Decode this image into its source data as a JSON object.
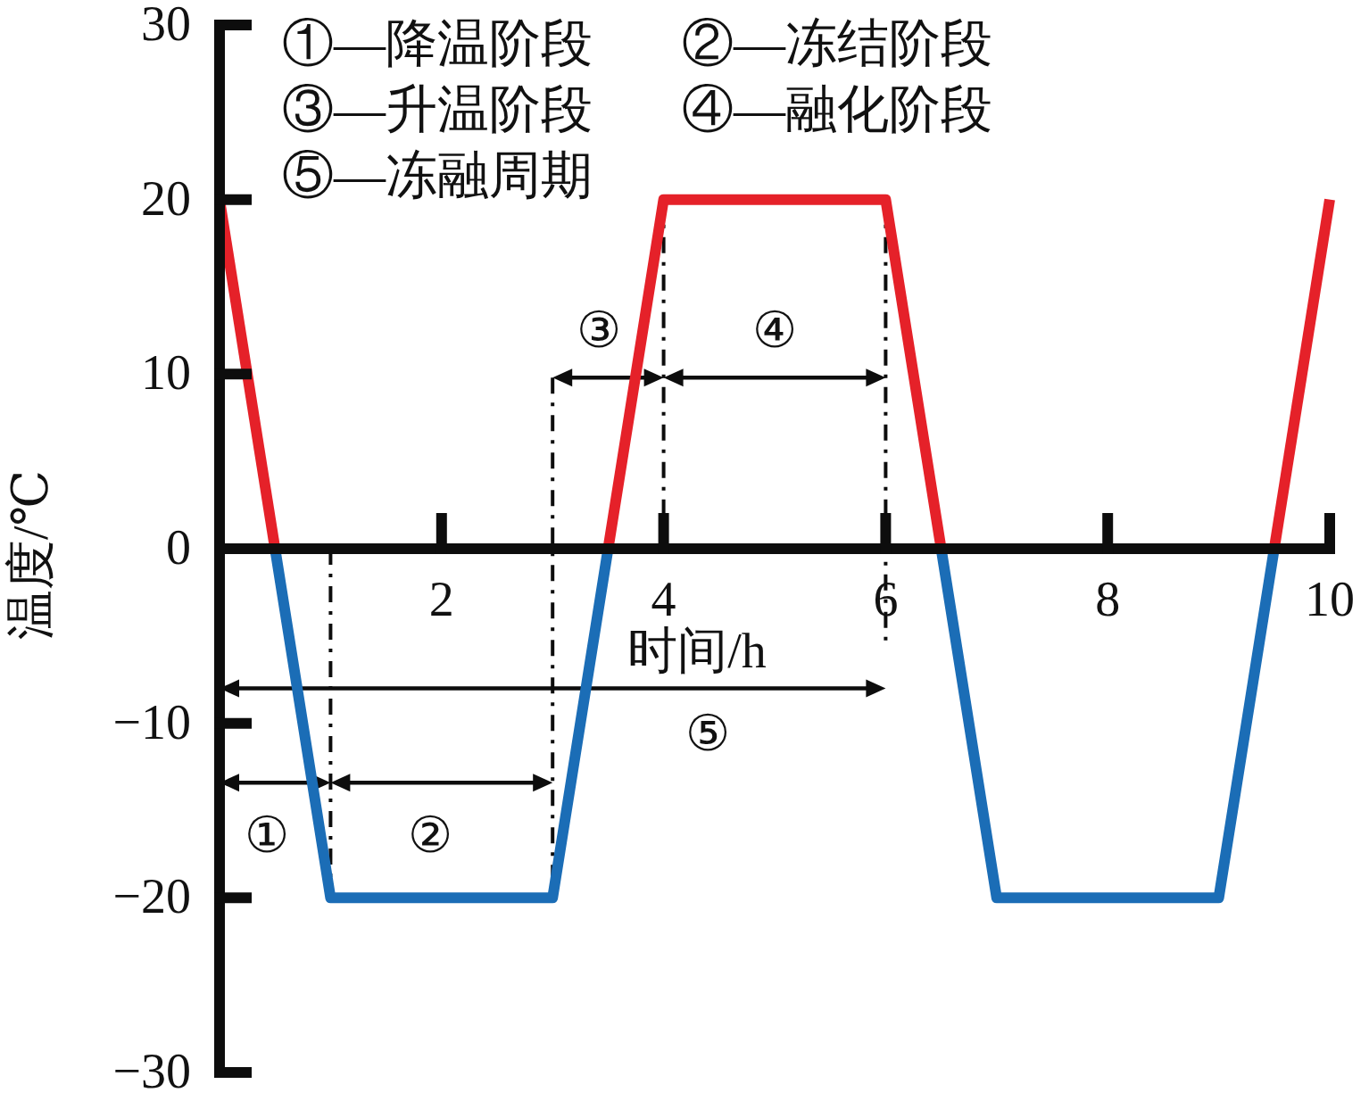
{
  "chart_data": {
    "type": "line",
    "xlabel": "时间/h",
    "ylabel": "温度/℃",
    "xlim": [
      0,
      10
    ],
    "ylim": [
      -30,
      30
    ],
    "xticks": [
      2,
      4,
      6,
      8,
      10
    ],
    "yticks": [
      -30,
      -20,
      -10,
      0,
      10,
      20,
      30
    ],
    "series": [
      {
        "color": "#e52129",
        "x": [
          0,
          0.5
        ],
        "values": [
          20,
          0
        ]
      },
      {
        "color": "#1b6db6",
        "x": [
          0.5,
          1,
          3,
          3.5
        ],
        "values": [
          0,
          -20,
          -20,
          0
        ]
      },
      {
        "color": "#e52129",
        "x": [
          3.5,
          4,
          6,
          6.5
        ],
        "values": [
          0,
          20,
          20,
          0
        ]
      },
      {
        "color": "#1b6db6",
        "x": [
          6.5,
          7,
          9,
          9.5
        ],
        "values": [
          0,
          -20,
          -20,
          0
        ]
      },
      {
        "color": "#e52129",
        "x": [
          9.5,
          10
        ],
        "values": [
          0,
          20
        ]
      }
    ],
    "annotations": [
      "①—降温阶段",
      "②—冻结阶段",
      "③—升温阶段",
      "④—融化阶段",
      "⑤—冻融周期",
      "①",
      "②",
      "③",
      "④",
      "⑤"
    ]
  }
}
